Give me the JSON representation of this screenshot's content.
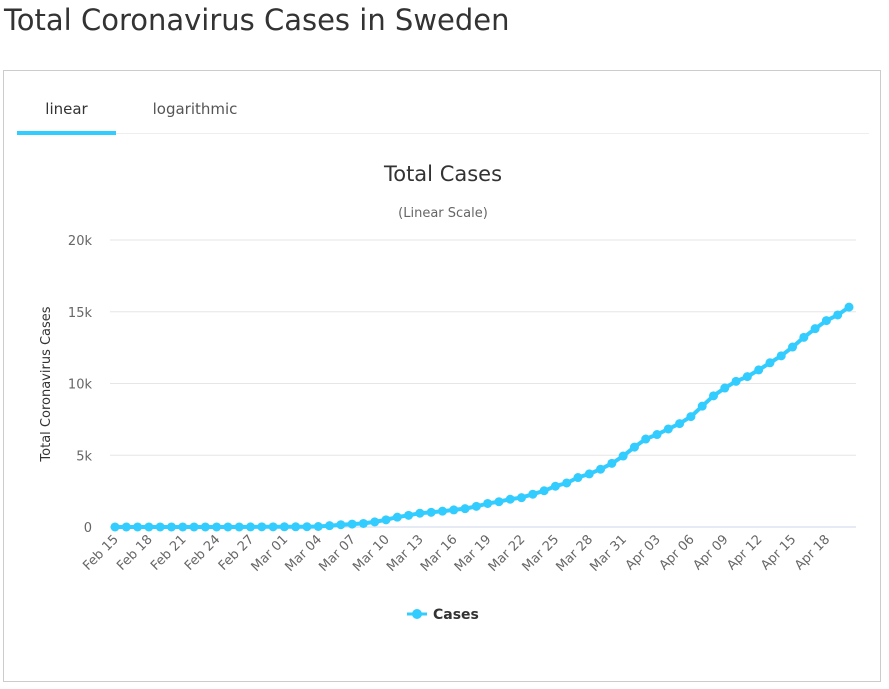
{
  "page": {
    "title": "Total Coronavirus Cases in Sweden"
  },
  "tabs": [
    {
      "label": "linear",
      "active": true
    },
    {
      "label": "logarithmic",
      "active": false
    }
  ],
  "colors": {
    "series": "#33ccff",
    "grid": "#e6e6e6",
    "axis_text": "#666666",
    "title_text": "#333333"
  },
  "chart_data": {
    "type": "line",
    "title": "Total Cases",
    "subtitle": "(Linear Scale)",
    "ylabel": "Total Coronavirus Cases",
    "xlabel": "",
    "ylim": [
      0,
      20000
    ],
    "y_ticks": [
      0,
      5000,
      10000,
      15000,
      20000
    ],
    "y_tick_labels": [
      "0",
      "5k",
      "10k",
      "15k",
      "20k"
    ],
    "x_tick_labels": [
      "Feb 15",
      "Feb 18",
      "Feb 21",
      "Feb 24",
      "Feb 27",
      "Mar 01",
      "Mar 04",
      "Mar 07",
      "Mar 10",
      "Mar 13",
      "Mar 16",
      "Mar 19",
      "Mar 22",
      "Mar 25",
      "Mar 28",
      "Mar 31",
      "Apr 03",
      "Apr 06",
      "Apr 09",
      "Apr 12",
      "Apr 15",
      "Apr 18"
    ],
    "legend": "bottom-center",
    "series": [
      {
        "name": "Cases",
        "categories": [
          "Feb 15",
          "Feb 16",
          "Feb 17",
          "Feb 18",
          "Feb 19",
          "Feb 20",
          "Feb 21",
          "Feb 22",
          "Feb 23",
          "Feb 24",
          "Feb 25",
          "Feb 26",
          "Feb 27",
          "Feb 28",
          "Feb 29",
          "Mar 01",
          "Mar 02",
          "Mar 03",
          "Mar 04",
          "Mar 05",
          "Mar 06",
          "Mar 07",
          "Mar 08",
          "Mar 09",
          "Mar 10",
          "Mar 11",
          "Mar 12",
          "Mar 13",
          "Mar 14",
          "Mar 15",
          "Mar 16",
          "Mar 17",
          "Mar 18",
          "Mar 19",
          "Mar 20",
          "Mar 21",
          "Mar 22",
          "Mar 23",
          "Mar 24",
          "Mar 25",
          "Mar 26",
          "Mar 27",
          "Mar 28",
          "Mar 29",
          "Mar 30",
          "Mar 31",
          "Apr 01",
          "Apr 02",
          "Apr 03",
          "Apr 04",
          "Apr 05",
          "Apr 06",
          "Apr 07",
          "Apr 08",
          "Apr 09",
          "Apr 10",
          "Apr 11",
          "Apr 12",
          "Apr 13",
          "Apr 14",
          "Apr 15",
          "Apr 16",
          "Apr 17",
          "Apr 18",
          "Apr 19",
          "Apr 20"
        ],
        "values": [
          1,
          1,
          1,
          1,
          1,
          1,
          1,
          1,
          1,
          1,
          1,
          1,
          7,
          12,
          13,
          14,
          15,
          21,
          35,
          94,
          161,
          203,
          248,
          355,
          500,
          687,
          814,
          961,
          1022,
          1103,
          1190,
          1279,
          1439,
          1639,
          1763,
          1934,
          2046,
          2286,
          2526,
          2840,
          3069,
          3447,
          3700,
          4028,
          4435,
          4947,
          5568,
          6131,
          6443,
          6830,
          7206,
          7693,
          8419,
          9141,
          9685,
          10151,
          10483,
          10948,
          11445,
          11927,
          12540,
          13216,
          13822,
          14385,
          14777,
          15322
        ]
      }
    ]
  }
}
